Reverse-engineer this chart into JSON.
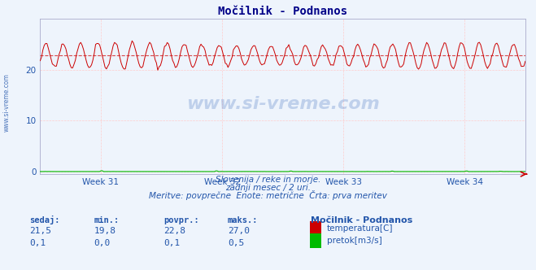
{
  "title": "Močilnik - Podnanos",
  "background_color": "#eef4fc",
  "plot_bg_color": "#eef4fc",
  "grid_color": "#ffffff",
  "temp_color": "#cc0000",
  "flow_color": "#00bb00",
  "x_tick_labels": [
    "Week 31",
    "Week 32",
    "Week 33",
    "Week 34"
  ],
  "y_max": 30,
  "temp_min": 19.8,
  "temp_max": 27.0,
  "temp_avg": 22.8,
  "temp_current": 21.5,
  "flow_min": 0.0,
  "flow_max": 0.5,
  "flow_avg": 0.1,
  "flow_current": 0.1,
  "subtitle1": "Slovenija / reke in morje.",
  "subtitle2": "zadnji mesec / 2 uri.",
  "subtitle3": "Meritve: povprečne  Enote: metrične  Črta: prva meritev",
  "legend_title": "Močilnik - Podnanos",
  "legend_temp": "temperatura[C]",
  "legend_flow": "pretok[m3/s]",
  "table_headers": [
    "sedaj:",
    "min.:",
    "povpr.:",
    "maks.:"
  ],
  "table_temp": [
    "21,5",
    "19,8",
    "22,8",
    "27,0"
  ],
  "table_flow": [
    "0,1",
    "0,0",
    "0,1",
    "0,5"
  ],
  "n_points": 360,
  "text_color": "#2255aa",
  "title_color": "#000088",
  "spine_color": "#aaaacc",
  "watermark": "www.si-vreme.com",
  "left_label": "www.si-vreme.com"
}
